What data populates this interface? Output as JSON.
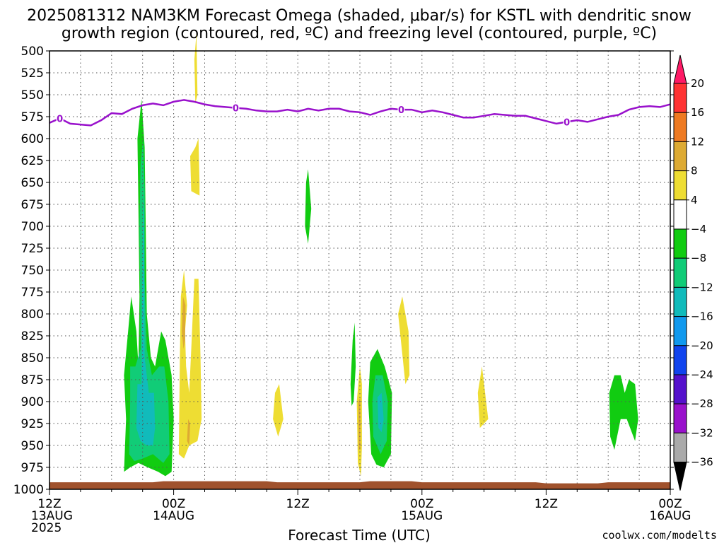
{
  "chart_data": {
    "type": "heatmap",
    "title_lines": [
      "2025081312 NAM3KM Forecast Omega (shaded, μbar/s) for KSTL with dendritic snow",
      "growth region (contoured, red, ºC) and freezing level (contoured, purple, ºC)"
    ],
    "xlabel": "Forecast Time (UTC)",
    "credit": "coolwx.com/modelts",
    "x_range_hours": [
      0,
      60
    ],
    "y_range_hpa": [
      500,
      1000
    ],
    "y_ticks": [
      500,
      525,
      550,
      575,
      600,
      625,
      650,
      675,
      700,
      725,
      750,
      775,
      800,
      825,
      850,
      875,
      900,
      925,
      950,
      975,
      1000
    ],
    "x_ticks": [
      {
        "hour": 0,
        "lines": [
          "12Z",
          "13AUG",
          "2025"
        ]
      },
      {
        "hour": 12,
        "lines": [
          "00Z",
          "14AUG"
        ]
      },
      {
        "hour": 24,
        "lines": [
          "12Z"
        ]
      },
      {
        "hour": 36,
        "lines": [
          "00Z",
          "15AUG"
        ]
      },
      {
        "hour": 48,
        "lines": [
          "12Z"
        ]
      },
      {
        "hour": 60,
        "lines": [
          "00Z",
          "16AUG"
        ]
      }
    ],
    "grid": true,
    "colorbar": {
      "position": "right",
      "levels": [
        "20",
        "16",
        "12",
        "8",
        "4",
        "−4",
        "−8",
        "−12",
        "−16",
        "−20",
        "−24",
        "−28",
        "−32",
        "−36"
      ],
      "colors": [
        "#ff1a66",
        "#ff3333",
        "#ee7a22",
        "#ddaa33",
        "#eedd33",
        "#ffffff",
        "#11cc11",
        "#11cc77",
        "#11bbbb",
        "#1199ee",
        "#1144ee",
        "#5511cc",
        "#9911cc",
        "#aaaaaa",
        "#000000"
      ]
    },
    "freezing_level": {
      "color": "#9911cc",
      "contour_label": "0",
      "label_hours": [
        1,
        18,
        34,
        50
      ],
      "points": [
        [
          0,
          582
        ],
        [
          1,
          577
        ],
        [
          2,
          583
        ],
        [
          4,
          585
        ],
        [
          5,
          579
        ],
        [
          6,
          571
        ],
        [
          7,
          572
        ],
        [
          8,
          566
        ],
        [
          9,
          562
        ],
        [
          10,
          560
        ],
        [
          11,
          562
        ],
        [
          12,
          558
        ],
        [
          13,
          556
        ],
        [
          14,
          558
        ],
        [
          15,
          561
        ],
        [
          16,
          563
        ],
        [
          17,
          564
        ],
        [
          18,
          565
        ],
        [
          19,
          566
        ],
        [
          20,
          568
        ],
        [
          21,
          569
        ],
        [
          22,
          569
        ],
        [
          23,
          567
        ],
        [
          24,
          569
        ],
        [
          25,
          566
        ],
        [
          26,
          568
        ],
        [
          27,
          566
        ],
        [
          28,
          566
        ],
        [
          29,
          569
        ],
        [
          30,
          570
        ],
        [
          31,
          573
        ],
        [
          32,
          569
        ],
        [
          33,
          566
        ],
        [
          34,
          567
        ],
        [
          35,
          567
        ],
        [
          36,
          570
        ],
        [
          37,
          568
        ],
        [
          38,
          570
        ],
        [
          39,
          573
        ],
        [
          40,
          576
        ],
        [
          41,
          576
        ],
        [
          42,
          574
        ],
        [
          43,
          572
        ],
        [
          44,
          573
        ],
        [
          45,
          574
        ],
        [
          46,
          574
        ],
        [
          47,
          577
        ],
        [
          48,
          580
        ],
        [
          49,
          583
        ],
        [
          50,
          581
        ],
        [
          51,
          579
        ],
        [
          52,
          581
        ],
        [
          53,
          578
        ],
        [
          54,
          575
        ],
        [
          55,
          573
        ],
        [
          56,
          567
        ],
        [
          57,
          564
        ],
        [
          58,
          563
        ],
        [
          59,
          564
        ],
        [
          60,
          561
        ]
      ]
    },
    "terrain": {
      "color": "#a0522d",
      "top_hpa": 992
    },
    "omega_regions": [
      {
        "level": "-4",
        "color": "#11cc11",
        "points": [
          [
            7.2,
            980
          ],
          [
            7.4,
            920
          ],
          [
            7.2,
            870
          ],
          [
            7.6,
            820
          ],
          [
            7.9,
            780
          ],
          [
            8.4,
            820
          ],
          [
            8.6,
            860
          ],
          [
            8.7,
            780
          ],
          [
            8.6,
            680
          ],
          [
            8.5,
            600
          ],
          [
            8.9,
            555
          ],
          [
            9.2,
            610
          ],
          [
            9.3,
            700
          ],
          [
            9.4,
            800
          ],
          [
            9.8,
            850
          ],
          [
            10.2,
            860
          ],
          [
            10.8,
            820
          ],
          [
            11.2,
            830
          ],
          [
            11.8,
            870
          ],
          [
            12,
            920
          ],
          [
            11.8,
            980
          ],
          [
            11.2,
            985
          ],
          [
            10.5,
            980
          ],
          [
            9.5,
            975
          ],
          [
            8.6,
            970
          ],
          [
            7.8,
            975
          ]
        ]
      },
      {
        "level": "-8",
        "color": "#11cc77",
        "points": [
          [
            7.7,
            960
          ],
          [
            7.8,
            900
          ],
          [
            7.8,
            860
          ],
          [
            8.3,
            860
          ],
          [
            8.8,
            840
          ],
          [
            8.7,
            700
          ],
          [
            8.8,
            630
          ],
          [
            9.05,
            600
          ],
          [
            9.2,
            660
          ],
          [
            9.2,
            760
          ],
          [
            9.4,
            840
          ],
          [
            9.9,
            870
          ],
          [
            10.6,
            860
          ],
          [
            11.1,
            860
          ],
          [
            11.5,
            900
          ],
          [
            11.6,
            960
          ],
          [
            11,
            970
          ],
          [
            10,
            960
          ],
          [
            9,
            965
          ],
          [
            8.2,
            968
          ]
        ]
      },
      {
        "level": "-12",
        "color": "#11bbbb",
        "points": [
          [
            8.4,
            930
          ],
          [
            8.5,
            880
          ],
          [
            8.9,
            880
          ],
          [
            9,
            700
          ],
          [
            9.1,
            660
          ],
          [
            9.15,
            720
          ],
          [
            9.2,
            850
          ],
          [
            9.6,
            890
          ],
          [
            10.1,
            890
          ],
          [
            10.2,
            930
          ],
          [
            10,
            950
          ],
          [
            9.4,
            950
          ],
          [
            8.8,
            945
          ]
        ]
      },
      {
        "level": "4",
        "color": "#eedd33",
        "points": [
          [
            12.5,
            960
          ],
          [
            12.6,
            850
          ],
          [
            12.7,
            780
          ],
          [
            13,
            750
          ],
          [
            13.3,
            790
          ],
          [
            13.1,
            820
          ],
          [
            13.2,
            860
          ],
          [
            13.5,
            890
          ],
          [
            13.7,
            840
          ],
          [
            14.0,
            760
          ],
          [
            14.4,
            760
          ],
          [
            14.6,
            850
          ],
          [
            14.7,
            920
          ],
          [
            14.3,
            945
          ],
          [
            13.5,
            950
          ],
          [
            13.0,
            965
          ]
        ]
      },
      {
        "level": "8",
        "color": "#ddaa33",
        "points": [
          [
            12.8,
            820
          ],
          [
            12.9,
            780
          ],
          [
            13.15,
            790
          ],
          [
            13.1,
            830
          ],
          [
            12.95,
            840
          ]
        ]
      },
      {
        "level": "8",
        "color": "#ddaa33",
        "points": [
          [
            13.3,
            945
          ],
          [
            13.4,
            920
          ],
          [
            13.6,
            925
          ],
          [
            13.5,
            950
          ]
        ]
      },
      {
        "level": "4",
        "color": "#eedd33",
        "points": [
          [
            14.0,
            510
          ],
          [
            14.2,
            480
          ],
          [
            14.3,
            550
          ],
          [
            14.1,
            560
          ]
        ]
      },
      {
        "level": "4",
        "color": "#eedd33",
        "points": [
          [
            13.7,
            660
          ],
          [
            13.6,
            620
          ],
          [
            14.1,
            610
          ],
          [
            14.4,
            600
          ],
          [
            14.5,
            650
          ],
          [
            14.5,
            665
          ]
        ]
      },
      {
        "level": "-4",
        "color": "#11cc11",
        "points": [
          [
            24.7,
            700
          ],
          [
            24.8,
            650
          ],
          [
            25,
            635
          ],
          [
            25.3,
            680
          ],
          [
            25.0,
            720
          ]
        ]
      },
      {
        "level": "4",
        "color": "#eedd33",
        "points": [
          [
            21.6,
            920
          ],
          [
            21.8,
            890
          ],
          [
            22.2,
            880
          ],
          [
            22.6,
            920
          ],
          [
            22.1,
            940
          ]
        ]
      },
      {
        "level": "-4",
        "color": "#11cc11",
        "points": [
          [
            29.1,
            880
          ],
          [
            29.3,
            830
          ],
          [
            29.5,
            810
          ],
          [
            29.6,
            860
          ],
          [
            29.4,
            900
          ],
          [
            29.2,
            905
          ]
        ]
      },
      {
        "level": "4",
        "color": "#eedd33",
        "points": [
          [
            29.8,
            970
          ],
          [
            29.7,
            900
          ],
          [
            30.0,
            860
          ],
          [
            30.2,
            880
          ],
          [
            30.2,
            950
          ],
          [
            30.1,
            985
          ]
        ]
      },
      {
        "level": "8",
        "color": "#ddaa33",
        "points": [
          [
            29.9,
            955
          ],
          [
            29.85,
            900
          ],
          [
            30.05,
            895
          ],
          [
            30.05,
            955
          ]
        ]
      },
      {
        "level": "-4",
        "color": "#11cc11",
        "points": [
          [
            31.1,
            960
          ],
          [
            30.8,
            900
          ],
          [
            31,
            855
          ],
          [
            31.7,
            840
          ],
          [
            32.4,
            860
          ],
          [
            33.1,
            890
          ],
          [
            33.0,
            960
          ],
          [
            32.3,
            975
          ],
          [
            31.6,
            972
          ]
        ]
      },
      {
        "level": "-8",
        "color": "#11cc77",
        "points": [
          [
            31.3,
            940
          ],
          [
            31.2,
            900
          ],
          [
            31.5,
            870
          ],
          [
            32.2,
            870
          ],
          [
            32.7,
            900
          ],
          [
            32.6,
            945
          ],
          [
            32,
            960
          ]
        ]
      },
      {
        "level": "-12",
        "color": "#11bbbb",
        "points": [
          [
            31.8,
            930
          ],
          [
            31.7,
            895
          ],
          [
            32.1,
            890
          ],
          [
            32.3,
            920
          ],
          [
            32.1,
            935
          ]
        ]
      },
      {
        "level": "4",
        "color": "#eedd33",
        "points": [
          [
            33.7,
            800
          ],
          [
            34.1,
            780
          ],
          [
            34.7,
            820
          ],
          [
            34.8,
            870
          ],
          [
            34.4,
            880
          ]
        ]
      },
      {
        "level": "4",
        "color": "#eedd33",
        "points": [
          [
            41.6,
            930
          ],
          [
            41.4,
            890
          ],
          [
            41.8,
            860
          ],
          [
            42.4,
            920
          ]
        ]
      },
      {
        "level": "-4",
        "color": "#11cc11",
        "points": [
          [
            54.2,
            940
          ],
          [
            54.1,
            890
          ],
          [
            54.6,
            870
          ],
          [
            55.2,
            870
          ],
          [
            55.6,
            890
          ],
          [
            56,
            875
          ],
          [
            56.6,
            880
          ],
          [
            56.9,
            920
          ],
          [
            56.6,
            945
          ],
          [
            55.8,
            920
          ],
          [
            55.2,
            920
          ],
          [
            54.6,
            955
          ]
        ]
      }
    ]
  }
}
